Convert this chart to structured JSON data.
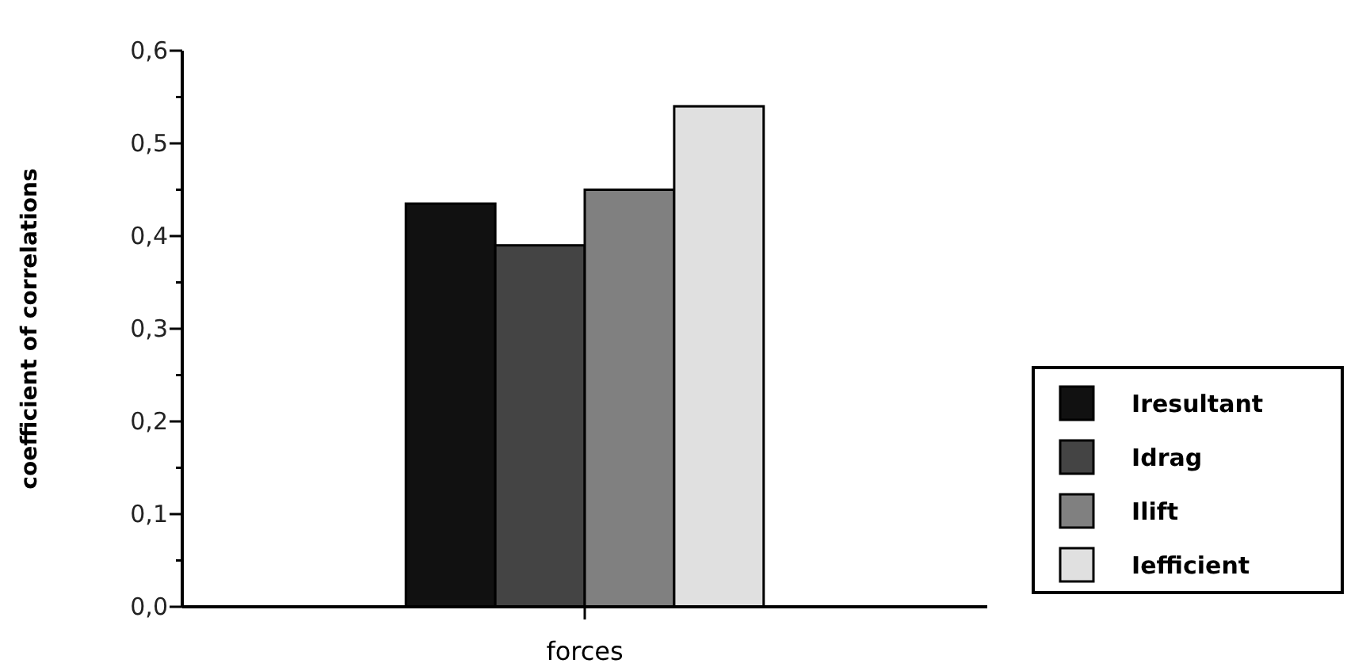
{
  "chart_data": {
    "type": "bar",
    "ylabel": "coefficient of correlations",
    "categories": [
      "forces"
    ],
    "series": [
      {
        "name": "Iresultant",
        "color": "#111111",
        "values": [
          0.435
        ]
      },
      {
        "name": "Idrag",
        "color": "#444444",
        "values": [
          0.39
        ]
      },
      {
        "name": "Ilift",
        "color": "#808080",
        "values": [
          0.45
        ]
      },
      {
        "name": "Iefficient",
        "color": "#e0e0e0",
        "values": [
          0.54
        ]
      }
    ],
    "ylim": [
      0,
      0.6
    ],
    "yticks": [
      {
        "value": 0,
        "label": "0,0"
      },
      {
        "value": 0.05,
        "label": null
      },
      {
        "value": 0.1,
        "label": "0,1"
      },
      {
        "value": 0.15,
        "label": null
      },
      {
        "value": 0.2,
        "label": "0,2"
      },
      {
        "value": 0.25,
        "label": null
      },
      {
        "value": 0.3,
        "label": "0,3"
      },
      {
        "value": 0.35,
        "label": null
      },
      {
        "value": 0.4,
        "label": "0,4"
      },
      {
        "value": 0.45,
        "label": null
      },
      {
        "value": 0.5,
        "label": "0,5"
      },
      {
        "value": 0.55,
        "label": null
      },
      {
        "value": 0.6,
        "label": "0,6"
      }
    ],
    "grid": false,
    "legend": "right"
  }
}
